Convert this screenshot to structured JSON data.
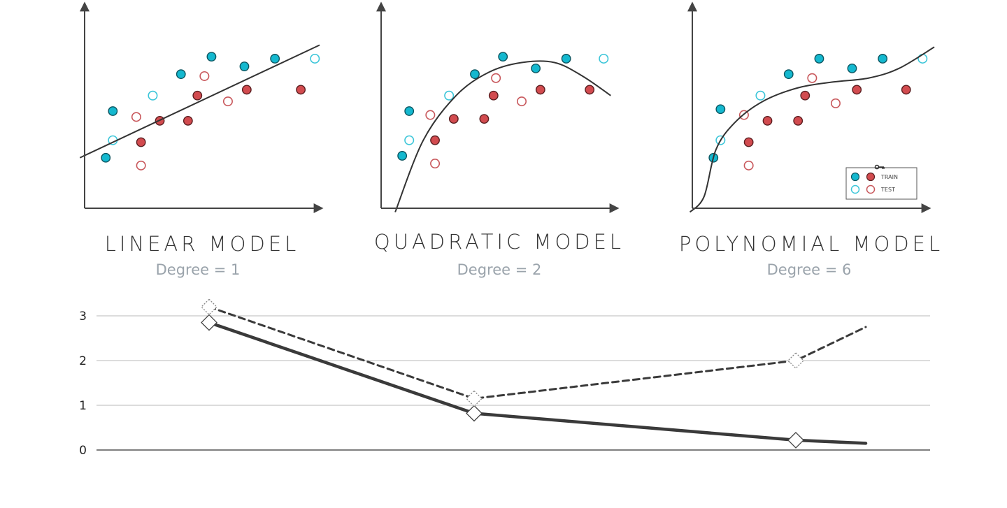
{
  "colors": {
    "train_fill": "#14b8cf",
    "train_stroke": "#0c5560",
    "test_stroke": "#3cc6d9",
    "red_fill": "#d24b4f",
    "red_stroke": "#5a1e20",
    "red_test_stroke": "#c8575b",
    "axis": "#444444",
    "grid": "#c8c8c8",
    "line": "#3a3a3a"
  },
  "panels": [
    {
      "title": "LINEAR MODEL",
      "subtitle": "Degree = 1",
      "type": "scatter",
      "curve": [
        [
          -0.02,
          0.26
        ],
        [
          1.0,
          0.84
        ]
      ],
      "points": [
        {
          "x": 0.09,
          "y": 0.26,
          "cls": "blue",
          "set": "train"
        },
        {
          "x": 0.12,
          "y": 0.5,
          "cls": "blue",
          "set": "train"
        },
        {
          "x": 0.41,
          "y": 0.69,
          "cls": "blue",
          "set": "train"
        },
        {
          "x": 0.54,
          "y": 0.78,
          "cls": "blue",
          "set": "train"
        },
        {
          "x": 0.68,
          "y": 0.73,
          "cls": "blue",
          "set": "train"
        },
        {
          "x": 0.81,
          "y": 0.77,
          "cls": "blue",
          "set": "train"
        },
        {
          "x": 0.12,
          "y": 0.35,
          "cls": "blue",
          "set": "test"
        },
        {
          "x": 0.29,
          "y": 0.58,
          "cls": "blue",
          "set": "test"
        },
        {
          "x": 0.98,
          "y": 0.77,
          "cls": "blue",
          "set": "test"
        },
        {
          "x": 0.24,
          "y": 0.34,
          "cls": "red",
          "set": "train"
        },
        {
          "x": 0.32,
          "y": 0.45,
          "cls": "red",
          "set": "train"
        },
        {
          "x": 0.44,
          "y": 0.45,
          "cls": "red",
          "set": "train"
        },
        {
          "x": 0.48,
          "y": 0.58,
          "cls": "red",
          "set": "train"
        },
        {
          "x": 0.69,
          "y": 0.61,
          "cls": "red",
          "set": "train"
        },
        {
          "x": 0.92,
          "y": 0.61,
          "cls": "red",
          "set": "train"
        },
        {
          "x": 0.22,
          "y": 0.47,
          "cls": "red",
          "set": "test"
        },
        {
          "x": 0.24,
          "y": 0.22,
          "cls": "red",
          "set": "test"
        },
        {
          "x": 0.51,
          "y": 0.68,
          "cls": "red",
          "set": "test"
        },
        {
          "x": 0.61,
          "y": 0.55,
          "cls": "red",
          "set": "test"
        }
      ]
    },
    {
      "title": "QUADRATIC MODEL",
      "subtitle": "Degree = 2",
      "type": "scatter",
      "curve": [
        [
          0.06,
          -0.02
        ],
        [
          0.18,
          0.35
        ],
        [
          0.32,
          0.58
        ],
        [
          0.46,
          0.7
        ],
        [
          0.6,
          0.75
        ],
        [
          0.74,
          0.75
        ],
        [
          0.86,
          0.68
        ],
        [
          0.98,
          0.58
        ]
      ],
      "points": [
        {
          "x": 0.09,
          "y": 0.27,
          "cls": "blue",
          "set": "train"
        },
        {
          "x": 0.12,
          "y": 0.5,
          "cls": "blue",
          "set": "train"
        },
        {
          "x": 0.4,
          "y": 0.69,
          "cls": "blue",
          "set": "train"
        },
        {
          "x": 0.52,
          "y": 0.78,
          "cls": "blue",
          "set": "train"
        },
        {
          "x": 0.66,
          "y": 0.72,
          "cls": "blue",
          "set": "train"
        },
        {
          "x": 0.79,
          "y": 0.77,
          "cls": "blue",
          "set": "train"
        },
        {
          "x": 0.12,
          "y": 0.35,
          "cls": "blue",
          "set": "test"
        },
        {
          "x": 0.29,
          "y": 0.58,
          "cls": "blue",
          "set": "test"
        },
        {
          "x": 0.95,
          "y": 0.77,
          "cls": "blue",
          "set": "test"
        },
        {
          "x": 0.23,
          "y": 0.35,
          "cls": "red",
          "set": "train"
        },
        {
          "x": 0.31,
          "y": 0.46,
          "cls": "red",
          "set": "train"
        },
        {
          "x": 0.44,
          "y": 0.46,
          "cls": "red",
          "set": "train"
        },
        {
          "x": 0.48,
          "y": 0.58,
          "cls": "red",
          "set": "train"
        },
        {
          "x": 0.68,
          "y": 0.61,
          "cls": "red",
          "set": "train"
        },
        {
          "x": 0.89,
          "y": 0.61,
          "cls": "red",
          "set": "train"
        },
        {
          "x": 0.21,
          "y": 0.48,
          "cls": "red",
          "set": "test"
        },
        {
          "x": 0.23,
          "y": 0.23,
          "cls": "red",
          "set": "test"
        },
        {
          "x": 0.49,
          "y": 0.67,
          "cls": "red",
          "set": "test"
        },
        {
          "x": 0.6,
          "y": 0.55,
          "cls": "red",
          "set": "test"
        }
      ]
    },
    {
      "title": "POLYNOMIAL MODEL",
      "subtitle": "Degree = 6",
      "type": "scatter",
      "curve": [
        [
          -0.01,
          -0.02
        ],
        [
          0.05,
          0.06
        ],
        [
          0.1,
          0.3
        ],
        [
          0.18,
          0.44
        ],
        [
          0.3,
          0.55
        ],
        [
          0.45,
          0.62
        ],
        [
          0.6,
          0.65
        ],
        [
          0.75,
          0.67
        ],
        [
          0.88,
          0.72
        ],
        [
          1.03,
          0.83
        ]
      ],
      "points": [
        {
          "x": 0.09,
          "y": 0.26,
          "cls": "blue",
          "set": "train"
        },
        {
          "x": 0.12,
          "y": 0.51,
          "cls": "blue",
          "set": "train"
        },
        {
          "x": 0.41,
          "y": 0.69,
          "cls": "blue",
          "set": "train"
        },
        {
          "x": 0.54,
          "y": 0.77,
          "cls": "blue",
          "set": "train"
        },
        {
          "x": 0.68,
          "y": 0.72,
          "cls": "blue",
          "set": "train"
        },
        {
          "x": 0.81,
          "y": 0.77,
          "cls": "blue",
          "set": "train"
        },
        {
          "x": 0.12,
          "y": 0.35,
          "cls": "blue",
          "set": "test"
        },
        {
          "x": 0.29,
          "y": 0.58,
          "cls": "blue",
          "set": "test"
        },
        {
          "x": 0.98,
          "y": 0.77,
          "cls": "blue",
          "set": "test"
        },
        {
          "x": 0.24,
          "y": 0.34,
          "cls": "red",
          "set": "train"
        },
        {
          "x": 0.32,
          "y": 0.45,
          "cls": "red",
          "set": "train"
        },
        {
          "x": 0.45,
          "y": 0.45,
          "cls": "red",
          "set": "train"
        },
        {
          "x": 0.48,
          "y": 0.58,
          "cls": "red",
          "set": "train"
        },
        {
          "x": 0.7,
          "y": 0.61,
          "cls": "red",
          "set": "train"
        },
        {
          "x": 0.91,
          "y": 0.61,
          "cls": "red",
          "set": "train"
        },
        {
          "x": 0.22,
          "y": 0.48,
          "cls": "red",
          "set": "test"
        },
        {
          "x": 0.24,
          "y": 0.22,
          "cls": "red",
          "set": "test"
        },
        {
          "x": 0.51,
          "y": 0.67,
          "cls": "red",
          "set": "test"
        },
        {
          "x": 0.61,
          "y": 0.54,
          "cls": "red",
          "set": "test"
        }
      ],
      "legend": {
        "train_label": "TRAIN",
        "test_label": "TEST"
      }
    }
  ],
  "chart_data": {
    "type": "line",
    "categories": [
      "Degree = 1",
      "Degree = 2",
      "Degree = 6"
    ],
    "ylim": [
      0,
      3
    ],
    "yticks": [
      "0",
      "1",
      "2",
      "3"
    ],
    "grid": true,
    "series": [
      {
        "style": "solid",
        "values": [
          2.85,
          0.82,
          0.22
        ],
        "extension": 0.15
      },
      {
        "style": "dashed",
        "values": [
          3.2,
          1.15,
          2.0
        ],
        "extension": 2.75
      }
    ]
  }
}
